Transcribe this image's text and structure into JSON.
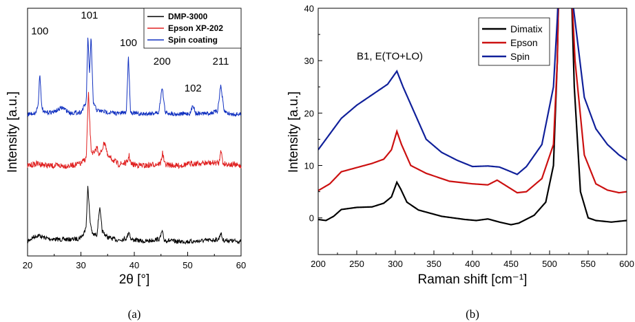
{
  "chart_data": [
    {
      "type": "line",
      "panel": "(a)",
      "xlabel": "2θ [°]",
      "ylabel": "Intensity [a.u.]",
      "xlim": [
        20,
        60
      ],
      "xticks": [
        20,
        30,
        40,
        50,
        60
      ],
      "yticks_shown": false,
      "legend": "top-right",
      "peak_labels": [
        {
          "text": "100",
          "x": 22.3
        },
        {
          "text": "101",
          "x": 31.6
        },
        {
          "text": "100",
          "x": 38.9
        },
        {
          "text": "200",
          "x": 45.2
        },
        {
          "text": "102",
          "x": 51.0
        },
        {
          "text": "211",
          "x": 56.2
        }
      ],
      "series": [
        {
          "name": "DMP-3000",
          "color": "#000000",
          "points": [
            [
              20,
              0.0
            ],
            [
              21,
              0.6
            ],
            [
              22,
              0.9
            ],
            [
              23,
              0.6
            ],
            [
              24,
              0.4
            ],
            [
              26,
              0.3
            ],
            [
              28,
              0.3
            ],
            [
              29.5,
              0.4
            ],
            [
              30.5,
              1.0
            ],
            [
              31,
              2.5
            ],
            [
              31.3,
              8.3
            ],
            [
              31.7,
              3.0
            ],
            [
              32.2,
              1.0
            ],
            [
              33,
              1.0
            ],
            [
              33.5,
              5.0
            ],
            [
              34,
              1.5
            ],
            [
              35,
              0.6
            ],
            [
              37,
              0.2
            ],
            [
              38.6,
              0.5
            ],
            [
              39,
              1.5
            ],
            [
              39.4,
              0.3
            ],
            [
              42,
              0.0
            ],
            [
              44.8,
              0.4
            ],
            [
              45.2,
              1.5
            ],
            [
              45.6,
              0.2
            ],
            [
              48,
              0.0
            ],
            [
              51,
              0.0
            ],
            [
              55.8,
              0.3
            ],
            [
              56.2,
              1.3
            ],
            [
              56.6,
              0.2
            ],
            [
              60,
              0.0
            ]
          ]
        },
        {
          "name": "Epson XP-202",
          "color": "#e02020",
          "points": [
            [
              20,
              0.0
            ],
            [
              22,
              0.3
            ],
            [
              24,
              0.0
            ],
            [
              26,
              0.0
            ],
            [
              28,
              0.0
            ],
            [
              30,
              0.3
            ],
            [
              31,
              1.0
            ],
            [
              31.4,
              9.5
            ],
            [
              31.9,
              2.0
            ],
            [
              32.5,
              1.5
            ],
            [
              33,
              2.5
            ],
            [
              33.5,
              1.3
            ],
            [
              34.5,
              3.2
            ],
            [
              35,
              1.2
            ],
            [
              36,
              0.8
            ],
            [
              37,
              0.2
            ],
            [
              38.7,
              0.4
            ],
            [
              39,
              1.4
            ],
            [
              39.4,
              0.2
            ],
            [
              42,
              0.0
            ],
            [
              44.9,
              0.3
            ],
            [
              45.3,
              1.7
            ],
            [
              45.7,
              0.2
            ],
            [
              48,
              0.0
            ],
            [
              51,
              0.3
            ],
            [
              55.9,
              0.4
            ],
            [
              56.2,
              2.3
            ],
            [
              56.6,
              0.3
            ],
            [
              60,
              0.0
            ]
          ]
        },
        {
          "name": "Spin coating",
          "color": "#1030c0",
          "points": [
            [
              20,
              0.0
            ],
            [
              21.5,
              0.3
            ],
            [
              22,
              2.5
            ],
            [
              22.3,
              11.0
            ],
            [
              22.6,
              2.5
            ],
            [
              23,
              0.4
            ],
            [
              25,
              0.6
            ],
            [
              26.5,
              1.7
            ],
            [
              28,
              0.3
            ],
            [
              30,
              0.5
            ],
            [
              31,
              3.0
            ],
            [
              31.3,
              20.0
            ],
            [
              31.6,
              10.0
            ],
            [
              31.9,
              20.0
            ],
            [
              32.3,
              3.0
            ],
            [
              33,
              1.0
            ],
            [
              35,
              0.5
            ],
            [
              37,
              0.2
            ],
            [
              38.5,
              0.5
            ],
            [
              38.9,
              15.0
            ],
            [
              39.3,
              0.5
            ],
            [
              41,
              0.0
            ],
            [
              44.6,
              0.4
            ],
            [
              45.2,
              7.2
            ],
            [
              45.8,
              0.4
            ],
            [
              48,
              0.0
            ],
            [
              50.5,
              0.2
            ],
            [
              51,
              2.5
            ],
            [
              51.5,
              0.2
            ],
            [
              54,
              0.2
            ],
            [
              55.6,
              0.8
            ],
            [
              56.2,
              7.5
            ],
            [
              56.8,
              0.8
            ],
            [
              58,
              0.0
            ],
            [
              60,
              0.0
            ]
          ]
        }
      ]
    },
    {
      "type": "line",
      "panel": "(b)",
      "xlabel": "Raman shift [cm⁻¹]",
      "ylabel": "Intensity [a.u.]",
      "xlim": [
        200,
        600
      ],
      "ylim": [
        -7,
        40
      ],
      "xticks": [
        200,
        250,
        300,
        350,
        400,
        450,
        500,
        550,
        600
      ],
      "yticks": [
        0,
        10,
        20,
        30,
        40
      ],
      "legend": "top-right",
      "annotation": {
        "text": "B1, E(TO+LO)",
        "x": 250,
        "y": 30.2
      },
      "series": [
        {
          "name": "Dimatix",
          "color": "#000000",
          "points": [
            [
              200,
              -0.3
            ],
            [
              210,
              -0.5
            ],
            [
              220,
              0.3
            ],
            [
              230,
              1.6
            ],
            [
              250,
              2.0
            ],
            [
              270,
              2.1
            ],
            [
              285,
              2.8
            ],
            [
              295,
              4.0
            ],
            [
              302,
              6.8
            ],
            [
              307,
              5.5
            ],
            [
              315,
              3.0
            ],
            [
              330,
              1.5
            ],
            [
              360,
              0.3
            ],
            [
              390,
              -0.3
            ],
            [
              405,
              -0.5
            ],
            [
              420,
              -0.2
            ],
            [
              435,
              -0.8
            ],
            [
              450,
              -1.3
            ],
            [
              460,
              -1.0
            ],
            [
              480,
              0.5
            ],
            [
              495,
              3.0
            ],
            [
              505,
              10.0
            ],
            [
              510,
              30.0
            ],
            [
              512,
              45.0
            ],
            [
              528,
              45.0
            ],
            [
              532,
              25.0
            ],
            [
              540,
              5.0
            ],
            [
              550,
              0.0
            ],
            [
              560,
              -0.5
            ],
            [
              580,
              -0.8
            ],
            [
              600,
              -0.5
            ]
          ]
        },
        {
          "name": "Epson",
          "color": "#cc1010",
          "points": [
            [
              200,
              5.2
            ],
            [
              215,
              6.5
            ],
            [
              230,
              8.8
            ],
            [
              250,
              9.6
            ],
            [
              270,
              10.4
            ],
            [
              285,
              11.2
            ],
            [
              295,
              13.0
            ],
            [
              302,
              16.5
            ],
            [
              308,
              14.0
            ],
            [
              320,
              10.0
            ],
            [
              340,
              8.5
            ],
            [
              370,
              7.0
            ],
            [
              400,
              6.5
            ],
            [
              420,
              6.3
            ],
            [
              432,
              7.2
            ],
            [
              445,
              6.0
            ],
            [
              458,
              4.8
            ],
            [
              470,
              5.0
            ],
            [
              490,
              7.5
            ],
            [
              505,
              14.0
            ],
            [
              510,
              30.0
            ],
            [
              512,
              45.0
            ],
            [
              528,
              45.0
            ],
            [
              533,
              30.0
            ],
            [
              545,
              12.0
            ],
            [
              560,
              6.5
            ],
            [
              575,
              5.3
            ],
            [
              590,
              4.8
            ],
            [
              600,
              5.0
            ]
          ]
        },
        {
          "name": "Spin",
          "color": "#10209a",
          "points": [
            [
              200,
              13.0
            ],
            [
              215,
              16.0
            ],
            [
              230,
              19.0
            ],
            [
              250,
              21.5
            ],
            [
              270,
              23.5
            ],
            [
              290,
              25.5
            ],
            [
              302,
              28.0
            ],
            [
              310,
              25.0
            ],
            [
              325,
              20.0
            ],
            [
              340,
              15.0
            ],
            [
              360,
              12.5
            ],
            [
              380,
              11.0
            ],
            [
              400,
              9.8
            ],
            [
              420,
              9.9
            ],
            [
              435,
              9.7
            ],
            [
              450,
              8.8
            ],
            [
              458,
              8.3
            ],
            [
              470,
              9.8
            ],
            [
              490,
              14.0
            ],
            [
              505,
              25.0
            ],
            [
              510,
              38.0
            ],
            [
              512,
              45.0
            ],
            [
              528,
              45.0
            ],
            [
              531,
              40.0
            ],
            [
              545,
              23.0
            ],
            [
              560,
              17.0
            ],
            [
              575,
              14.0
            ],
            [
              590,
              12.0
            ],
            [
              600,
              11.0
            ]
          ]
        }
      ]
    }
  ]
}
